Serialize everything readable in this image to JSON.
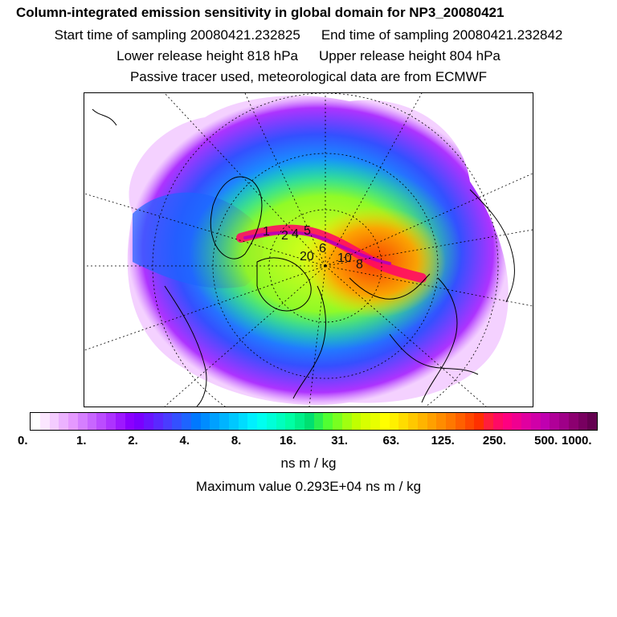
{
  "header": {
    "title": "Column-integrated emission sensitivity in global domain for NP3_20080421",
    "start_time": "Start time of sampling 20080421.232825",
    "end_time": "End time of sampling 20080421.232842",
    "lower_height": "Lower release height  818 hPa",
    "upper_height": "Upper release height  804 hPa",
    "note": "Passive tracer used, meteorological data are from ECMWF"
  },
  "map": {
    "projection": "polar stereographic (north)",
    "track_labels": [
      "1",
      "2",
      "4",
      "5",
      "6",
      "8",
      "10",
      "20"
    ]
  },
  "colorbar": {
    "tick_labels": [
      "0.",
      "1.",
      "2.",
      "4.",
      "8.",
      "16.",
      "31.",
      "63.",
      "125.",
      "250.",
      "500.",
      "1000."
    ],
    "colors": [
      "#ffffff",
      "#fbe6ff",
      "#f4ccff",
      "#ecb2ff",
      "#e599ff",
      "#d57fff",
      "#c866ff",
      "#bb4cff",
      "#ad33ff",
      "#9d18ff",
      "#8a00ff",
      "#7a00ff",
      "#6a14ff",
      "#5a28ff",
      "#4a3cff",
      "#3450ff",
      "#1e64ff",
      "#0078ff",
      "#008cff",
      "#00a0ff",
      "#00b4ff",
      "#00c8ff",
      "#00dcff",
      "#00f0ff",
      "#00fff0",
      "#00ffd8",
      "#00ffbe",
      "#00ffa4",
      "#00f08a",
      "#00e070",
      "#28f050",
      "#50ff32",
      "#78ff20",
      "#a0ff10",
      "#c0ff00",
      "#d8ff00",
      "#e8ff00",
      "#ffff00",
      "#fff000",
      "#ffdc00",
      "#ffc800",
      "#ffb400",
      "#ffa000",
      "#ff8c00",
      "#ff7800",
      "#ff6000",
      "#ff4800",
      "#ff3000",
      "#ff1e3c",
      "#ff0a64",
      "#ff0080",
      "#f00090",
      "#e000a0",
      "#d000a8",
      "#c000b0",
      "#b00098",
      "#9f0088",
      "#8c0070",
      "#780060",
      "#640050"
    ],
    "units": "ns m / kg",
    "max_value": "Maximum value  0.293E+04 ns m / kg"
  }
}
